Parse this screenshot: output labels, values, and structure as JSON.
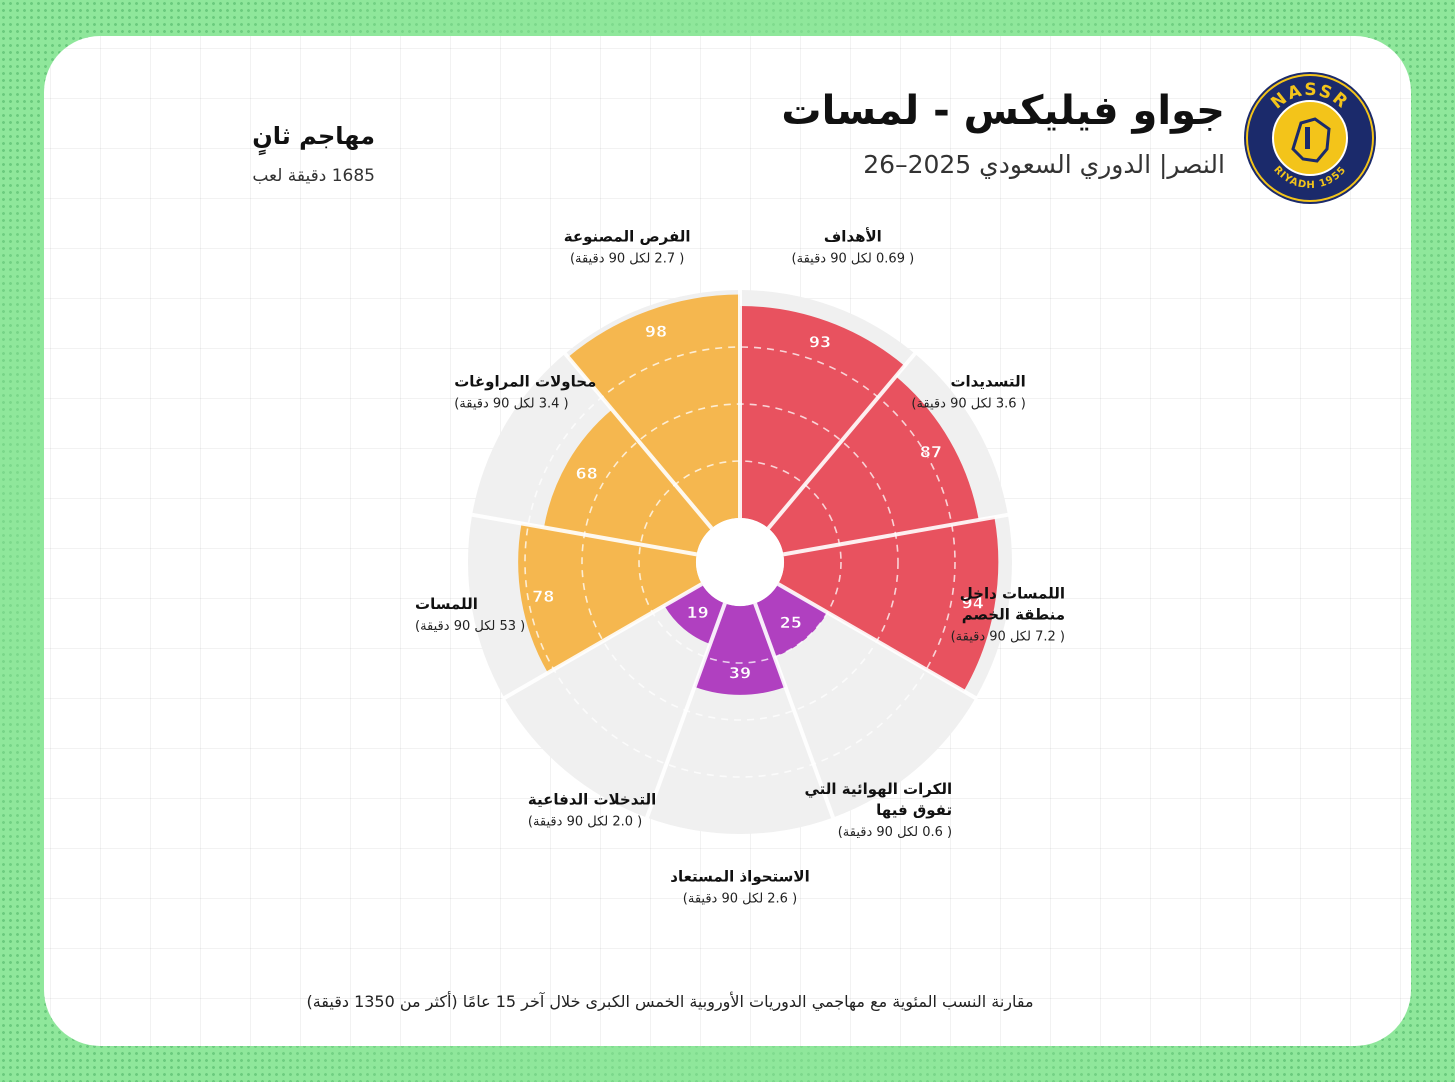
{
  "header": {
    "title": "جواو فيليكس - لمسات",
    "subtitle": "النصر| الدوري السعودي 2025–26"
  },
  "player": {
    "role": "مهاجم ثانٍ",
    "minutes": "1685 دقيقة لعب"
  },
  "logo": {
    "top_text": "NASSR",
    "bottom_text": "RIYADH 1955",
    "colors": {
      "ring": "#1b2a6b",
      "fill": "#f3c41a"
    }
  },
  "footnote": "مقارنة النسب المئوية مع مهاجمي الدوريات الأوروبية الخمس الكبرى خلال آخر 15 عامًا (أكثر من 1350 دقيقة)",
  "colors": {
    "attacking": "#e8525f",
    "possession": "#f5b74f",
    "defending": "#b040c0",
    "empty": "#f0f0f0"
  },
  "chart_data": {
    "type": "polar-bar",
    "scale": [
      0,
      100
    ],
    "slices": [
      {
        "label": "الأهداف",
        "per90": "( 0.69 لكل 90 دقيقة)",
        "value": 93,
        "group": "attacking"
      },
      {
        "label": "التسديدات",
        "per90": "( 3.6 لكل 90 دقيقة)",
        "value": 87,
        "group": "attacking"
      },
      {
        "label": "اللمسات داخل منطقة الخصم",
        "per90": "( 7.2 لكل 90 دقيقة)",
        "value": 94,
        "group": "attacking"
      },
      {
        "label": "الكرات الهوائية التي تفوق فيها",
        "per90": "( 0.6 لكل 90 دقيقة)",
        "value": 25,
        "group": "defending"
      },
      {
        "label": "الاستحواذ المستعاد",
        "per90": "( 2.6 لكل 90 دقيقة)",
        "value": 39,
        "group": "defending"
      },
      {
        "label": "التدخلات الدفاعية",
        "per90": "( 2.0 لكل 90 دقيقة)",
        "value": 19,
        "group": "defending"
      },
      {
        "label": "اللمسات",
        "per90": "( 53 لكل 90 دقيقة)",
        "value": 78,
        "group": "possession"
      },
      {
        "label": "محاولات المراوغات",
        "per90": "( 3.4 لكل 90 دقيقة)",
        "value": 68,
        "group": "possession"
      },
      {
        "label": "الفرص المصنوعة",
        "per90": "( 2.7 لكل 90 دقيقة)",
        "value": 98,
        "group": "possession"
      }
    ]
  }
}
